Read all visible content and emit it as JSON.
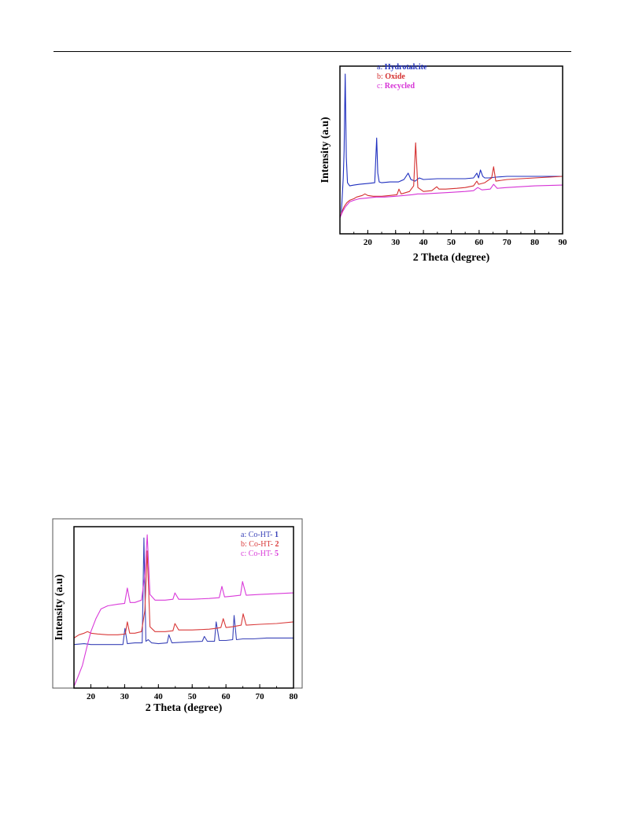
{
  "chart_data": [
    {
      "type": "line",
      "xlabel": "2 Theta (degree)",
      "ylabel": "Intensity (a.u)",
      "xlim": [
        10,
        90
      ],
      "x_ticks": [
        "20",
        "30",
        "40",
        "50",
        "60",
        "70",
        "80",
        "90"
      ],
      "legend_position": "top-right",
      "series": [
        {
          "name": "Hydrotalcite",
          "legend_prefix": "a:",
          "color": "#1f2fbf",
          "x": [
            10.5,
            11.2,
            11.5,
            11.9,
            12.3,
            12.7,
            13.5,
            15,
            17,
            20,
            22.5,
            23.2,
            23.6,
            24.1,
            25,
            28,
            31,
            33,
            34.5,
            35.5,
            37,
            38.5,
            40,
            45,
            50,
            55,
            58,
            59.2,
            59.8,
            60.5,
            61.3,
            62,
            63.5,
            66,
            70,
            80,
            90
          ],
          "y": [
            13,
            35,
            52,
            100,
            48,
            32,
            30,
            30.5,
            31,
            31.5,
            32,
            60,
            38,
            32.5,
            32,
            32.5,
            32.5,
            34,
            38,
            34,
            33,
            35,
            34,
            34.5,
            34.5,
            34.5,
            35,
            38,
            35,
            40,
            36,
            35,
            35,
            35.5,
            36,
            36,
            36
          ]
        },
        {
          "name": "Oxide",
          "legend_prefix": "b:",
          "color": "#d42f2f",
          "x": [
            10,
            10.8,
            11.5,
            12.5,
            13.5,
            15,
            16,
            18,
            19,
            20,
            22,
            25,
            28,
            30.5,
            31.2,
            32,
            33,
            35,
            36.5,
            37.2,
            38,
            40,
            43,
            44.8,
            45.6,
            48,
            52,
            55,
            58,
            59.2,
            59.8,
            62,
            64.5,
            65.2,
            66,
            70,
            80,
            90
          ],
          "y": [
            10,
            14,
            17,
            19.5,
            21,
            22,
            23,
            24,
            25,
            24,
            23.5,
            23.5,
            24,
            24.5,
            28,
            25,
            25.5,
            26.5,
            30,
            57,
            29,
            26.5,
            27,
            29.5,
            28,
            28,
            28.5,
            29,
            30,
            33,
            31,
            32,
            35,
            42,
            33,
            34,
            35,
            36
          ]
        },
        {
          "name": "Recycled",
          "legend_prefix": "c:",
          "color": "#d633d6",
          "x": [
            10,
            11,
            12,
            13.5,
            15,
            17,
            20,
            23,
            26,
            30,
            33,
            36,
            38,
            40,
            45,
            50,
            55,
            58,
            59.5,
            61,
            64,
            65.2,
            66.5,
            70,
            80,
            90
          ],
          "y": [
            10,
            14,
            17,
            20,
            21,
            22,
            22.5,
            23,
            23,
            23.5,
            24,
            24.5,
            25,
            25,
            25.5,
            26,
            26.5,
            27,
            29,
            27.5,
            28,
            31,
            28.5,
            29,
            30,
            30.5
          ]
        }
      ]
    },
    {
      "type": "line",
      "xlabel": "2 Theta (degree)",
      "ylabel": "Intensity (a.u)",
      "xlim": [
        15,
        80
      ],
      "x_ticks": [
        "20",
        "30",
        "40",
        "50",
        "60",
        "70",
        "80"
      ],
      "legend_position": "top-right",
      "series": [
        {
          "name": "Co-HT- ",
          "number": "1",
          "legend_prefix": "a:",
          "color": "#3a43b8",
          "x": [
            15,
            18,
            20,
            25,
            29.5,
            30.1,
            30.8,
            33,
            35.2,
            35.7,
            36.3,
            37,
            38,
            40,
            42.6,
            43.1,
            44,
            48,
            53,
            53.6,
            54.5,
            56.6,
            57.1,
            58,
            60,
            62,
            62.4,
            63.1,
            65,
            68,
            72,
            75,
            80
          ],
          "y": [
            27,
            27.5,
            27,
            27,
            27,
            37,
            27.5,
            28,
            28,
            93,
            29,
            30,
            28,
            27.5,
            28,
            33,
            28,
            28.5,
            29,
            32,
            29,
            29,
            41,
            29.5,
            29.5,
            30,
            45,
            30,
            30.5,
            30.5,
            31,
            31,
            31
          ]
        },
        {
          "name": "Co-HT- ",
          "number": "2",
          "legend_prefix": "b:",
          "color": "#d93a3a",
          "x": [
            15,
            16.5,
            18,
            19,
            20,
            22,
            25,
            28,
            30.2,
            30.8,
            31.5,
            33,
            35,
            36,
            36.7,
            37.5,
            39,
            42,
            44.3,
            44.9,
            46,
            50,
            55,
            57,
            58.5,
            59.2,
            60,
            62,
            64.5,
            65.1,
            66,
            70,
            75,
            80
          ],
          "y": [
            31,
            33,
            34,
            35,
            34,
            33.5,
            33,
            33,
            33.5,
            41,
            34,
            34,
            35,
            48,
            85,
            38,
            35,
            35,
            35.5,
            40,
            36,
            36,
            36.5,
            37,
            37.5,
            43,
            37.5,
            38,
            39,
            46,
            39,
            39.5,
            40,
            41
          ]
        },
        {
          "name": "Co-HT- ",
          "number": "5",
          "legend_prefix": "c:",
          "color": "#d93ad9",
          "x": [
            15,
            16,
            17.5,
            19,
            20,
            21.5,
            23,
            25,
            28,
            30,
            30.8,
            31.6,
            33,
            35,
            36,
            36.7,
            37.5,
            39,
            42,
            44.3,
            44.9,
            46,
            50,
            55,
            58,
            58.8,
            59.6,
            62,
            64.3,
            64.9,
            66,
            70,
            75,
            80
          ],
          "y": [
            1,
            6,
            14,
            27,
            35,
            43,
            49,
            51,
            52,
            52.5,
            62,
            53,
            53,
            54.5,
            70,
            95,
            58,
            54.5,
            54.5,
            55,
            59,
            55,
            55,
            55.5,
            56,
            63,
            56.5,
            57,
            57.5,
            66,
            57.5,
            58,
            58.5,
            59
          ]
        }
      ]
    }
  ]
}
